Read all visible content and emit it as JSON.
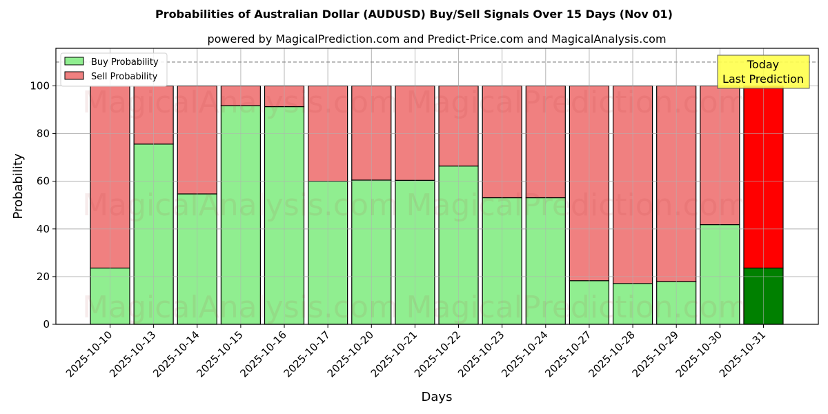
{
  "title": "Probabilities of Australian Dollar (AUDUSD) Buy/Sell Signals Over 15 Days (Nov 01)",
  "subtitle": "powered by MagicalPrediction.com and Predict-Price.com and MagicalAnalysis.com",
  "xlabel": "Days",
  "ylabel": "Probability",
  "legend": {
    "buy_label": "Buy Probability",
    "sell_label": "Sell Probability"
  },
  "annotation": {
    "line1": "Today",
    "line2": "Last Prediction"
  },
  "watermarks": [
    "MagicalAnalysis.com",
    "MagicalPrediction.com"
  ],
  "colors": {
    "buy": "#90ee90",
    "sell": "#f08080",
    "buy_today": "#008000",
    "sell_today": "#ff0000",
    "annotation_bg": "#ffff4d",
    "grid": "#b0b0b0"
  },
  "chart_data": {
    "type": "bar",
    "stacked": true,
    "title": "Probabilities of Australian Dollar (AUDUSD) Buy/Sell Signals Over 15 Days (Nov 01)",
    "subtitle": "powered by MagicalPrediction.com and Predict-Price.com and MagicalAnalysis.com",
    "xlabel": "Days",
    "ylabel": "Probability",
    "ylim": [
      0,
      115
    ],
    "yticks": [
      0,
      20,
      40,
      60,
      80,
      100
    ],
    "grid": true,
    "legend_position": "upper left",
    "reference_line": {
      "y": 110,
      "style": "dashed",
      "color": "#808080"
    },
    "categories": [
      "2025-10-10",
      "2025-10-13",
      "2025-10-14",
      "2025-10-15",
      "2025-10-16",
      "2025-10-17",
      "2025-10-20",
      "2025-10-21",
      "2025-10-22",
      "2025-10-23",
      "2025-10-24",
      "2025-10-27",
      "2025-10-28",
      "2025-10-29",
      "2025-10-30",
      "2025-10-31"
    ],
    "series": [
      {
        "name": "Buy Probability",
        "values": [
          23.6,
          75.6,
          54.7,
          91.7,
          91.3,
          60.0,
          60.5,
          60.4,
          66.4,
          53.1,
          53.1,
          18.3,
          17.1,
          17.9,
          41.8,
          23.6
        ]
      },
      {
        "name": "Sell Probability",
        "values": [
          76.4,
          24.4,
          45.3,
          8.3,
          8.7,
          40.0,
          39.5,
          39.6,
          33.6,
          46.9,
          46.9,
          81.7,
          82.9,
          82.1,
          58.2,
          76.4
        ]
      }
    ],
    "annotations": [
      {
        "text": "Today\nLast Prediction",
        "category": "2025-10-31"
      }
    ]
  }
}
